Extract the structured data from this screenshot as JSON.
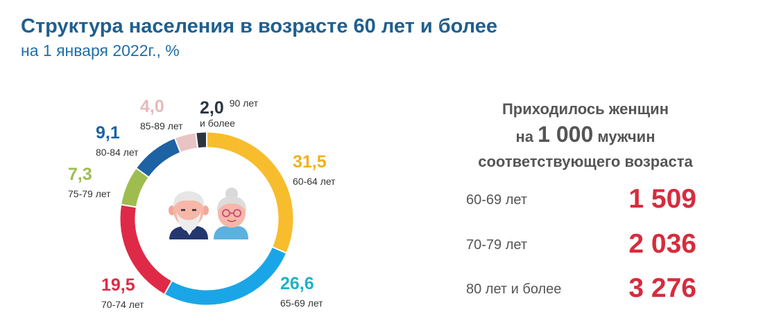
{
  "title": "Структура населения в возрасте 60 лет и более",
  "subtitle": "на 1 января 2022г., %",
  "chart_data": {
    "type": "pie",
    "donut": true,
    "start": "top",
    "direction": "clockwise",
    "segments": [
      {
        "label": "60-64 лет",
        "value": 31.5,
        "display": "31,5",
        "color": "#f7bd2d"
      },
      {
        "label": "65-69 лет",
        "value": 26.6,
        "display": "26,6",
        "color": "#1aa6e6"
      },
      {
        "label": "70-74 лет",
        "value": 19.5,
        "display": "19,5",
        "color": "#df2a47"
      },
      {
        "label": "75-79 лет",
        "value": 7.3,
        "display": "7,3",
        "color": "#9ebd4e"
      },
      {
        "label": "80-84 лет",
        "value": 9.1,
        "display": "9,1",
        "color": "#1d62a3"
      },
      {
        "label": "85-89 лет",
        "value": 4.0,
        "display": "4,0",
        "color": "#e9c4c4"
      },
      {
        "label": "90 лет",
        "label2": "и более",
        "value": 2.0,
        "display": "2,0",
        "color": "#2c3440"
      }
    ],
    "center_icons": [
      "elderly-man-icon",
      "elderly-woman-icon"
    ]
  },
  "ratio": {
    "heading_line1": "Приходилось женщин",
    "heading_line2_pre": "на",
    "heading_line2_big": "1 000",
    "heading_line2_post": "мужчин",
    "heading_line3": "соответствующего возраста",
    "rows": [
      {
        "label": "60-69 лет",
        "value": "1 509"
      },
      {
        "label": "70-79 лет",
        "value": "2 036"
      },
      {
        "label": "80 лет и более",
        "value": "3 276"
      }
    ],
    "value_color": "#d62c3d"
  }
}
